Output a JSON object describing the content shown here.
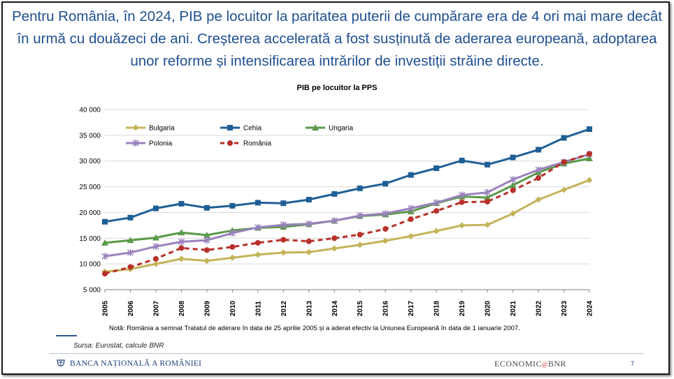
{
  "headline": "Pentru România, în 2024, PIB pe locuitor la paritatea puterii de cumpărare era de 4 ori mai mare decât în urmă cu douăzeci de ani. Creșterea accelerată a fost susținută de aderarea europeană, adoptarea unor reforme și intensificarea intrărilor de investiții străine directe.",
  "note": "Notă: România a semnat Tratatul de aderare în data de 25 aprilie 2005 și a aderat efectiv la Uniunea Europeană în data de 1 ianuarie 2007.",
  "source": "Sursa: Eurostat, calcule BNR",
  "footer": {
    "bank_name": "BANCA NAȚIONALĂ A ROMÂNIEI",
    "econ_left": "ECONOMIC",
    "econ_mid": "@",
    "econ_right": "BNR",
    "page_number": "7"
  },
  "chart_data": {
    "type": "line",
    "title": "PIB pe locuitor  la PPS",
    "xlabel": "",
    "ylabel": "",
    "ylim": [
      5000,
      40000
    ],
    "yticks": [
      5000,
      10000,
      15000,
      20000,
      25000,
      30000,
      35000,
      40000
    ],
    "ytick_labels": [
      "5 000",
      "10 000",
      "15 000",
      "20 000",
      "25 000",
      "30 000",
      "35 000",
      "40 000"
    ],
    "categories": [
      "2005",
      "2006",
      "2007",
      "2008",
      "2009",
      "2010",
      "2011",
      "2012",
      "2013",
      "2014",
      "2015",
      "2016",
      "2017",
      "2018",
      "2019",
      "2020",
      "2021",
      "2022",
      "2023",
      "2024"
    ],
    "grid": "horizontal",
    "legend_position": "top-left",
    "series": [
      {
        "name": "Bulgaria",
        "color": "#c3b45a",
        "marker": "diamond",
        "dash": false,
        "values": [
          8500,
          9000,
          10000,
          11000,
          10600,
          11200,
          11800,
          12200,
          12300,
          13000,
          13700,
          14500,
          15400,
          16400,
          17500,
          17600,
          19800,
          22500,
          24400,
          26300
        ]
      },
      {
        "name": "Cehia",
        "color": "#1f5f96",
        "marker": "square",
        "dash": false,
        "values": [
          18200,
          19000,
          20800,
          21700,
          20900,
          21300,
          21900,
          21800,
          22500,
          23600,
          24700,
          25600,
          27300,
          28600,
          30100,
          29300,
          30700,
          32200,
          34500,
          36200
        ]
      },
      {
        "name": "Ungaria",
        "color": "#5a9a4a",
        "marker": "triangle",
        "dash": false,
        "values": [
          14100,
          14600,
          15100,
          16100,
          15600,
          16500,
          17000,
          17200,
          17700,
          18400,
          19300,
          19600,
          20200,
          21800,
          23100,
          22900,
          25300,
          27800,
          29500,
          30500
        ]
      },
      {
        "name": "Polonia",
        "color": "#9b82be",
        "marker": "x",
        "dash": false,
        "values": [
          11500,
          12200,
          13400,
          14300,
          14600,
          16000,
          17100,
          17600,
          17800,
          18400,
          19400,
          19800,
          20800,
          21900,
          23400,
          23900,
          26400,
          28300,
          29800,
          31300
        ]
      },
      {
        "name": "România",
        "color": "#b8312a",
        "marker": "circle",
        "dash": true,
        "values": [
          8100,
          9400,
          11000,
          13100,
          12700,
          13300,
          14100,
          14700,
          14400,
          15000,
          15700,
          16800,
          18700,
          20300,
          22000,
          22100,
          24300,
          26700,
          29800,
          31400
        ]
      }
    ]
  }
}
